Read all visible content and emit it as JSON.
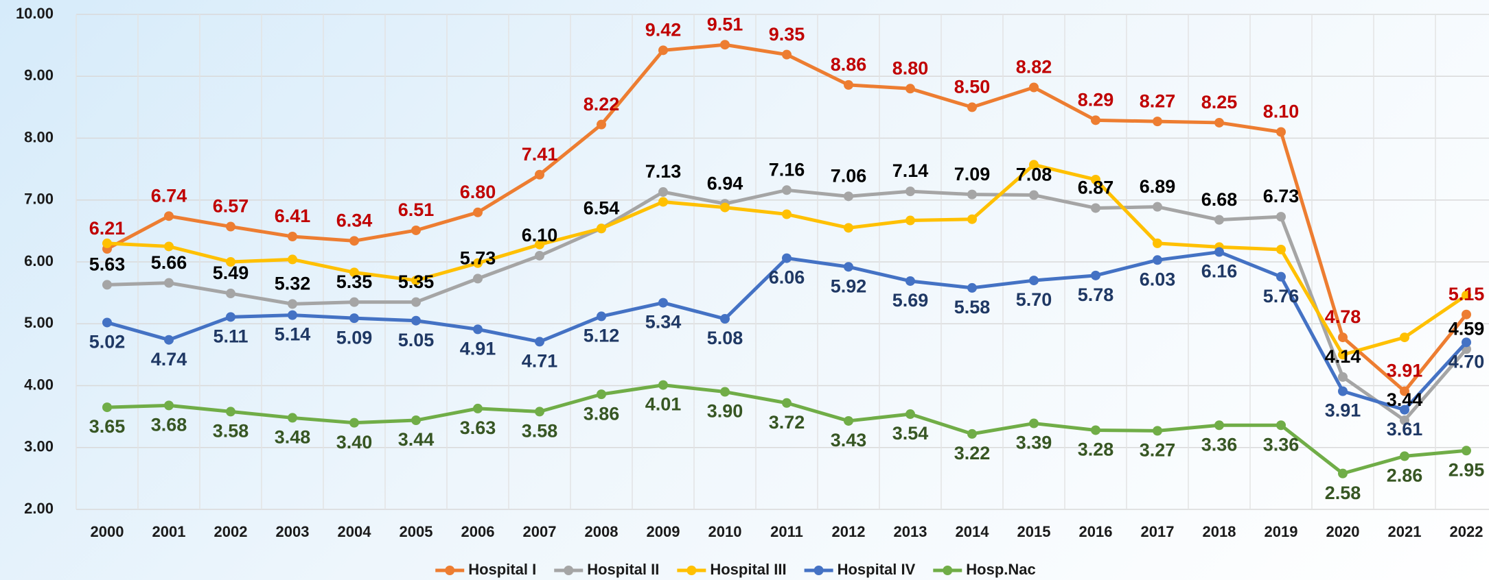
{
  "chart_data": {
    "type": "line",
    "categories": [
      "2000",
      "2001",
      "2002",
      "2003",
      "2004",
      "2005",
      "2006",
      "2007",
      "2008",
      "2009",
      "2010",
      "2011",
      "2012",
      "2013",
      "2014",
      "2015",
      "2016",
      "2017",
      "2018",
      "2019",
      "2020",
      "2021",
      "2022"
    ],
    "series": [
      {
        "name": "Hospital I",
        "color": "#ed7d31",
        "label_color": "#c00000",
        "label_position": "above",
        "values": [
          6.21,
          6.74,
          6.57,
          6.41,
          6.34,
          6.51,
          6.8,
          7.41,
          8.22,
          9.42,
          9.51,
          9.35,
          8.86,
          8.8,
          8.5,
          8.82,
          8.29,
          8.27,
          8.25,
          8.1,
          4.78,
          3.91,
          5.15
        ],
        "value_labels": [
          "6.21",
          "6.74",
          "6.57",
          "6.41",
          "6.34",
          "6.51",
          "6.80",
          "7.41",
          "8.22",
          "9.42",
          "9.51",
          "9.35",
          "8.86",
          "8.80",
          "8.50",
          "8.82",
          "8.29",
          "8.27",
          "8.25",
          "8.10",
          "4.78",
          "3.91",
          "5.15"
        ]
      },
      {
        "name": "Hospital II",
        "color": "#a5a5a5",
        "label_color": "#000000",
        "label_position": "above",
        "values": [
          5.63,
          5.66,
          5.49,
          5.32,
          5.35,
          5.35,
          5.73,
          6.1,
          6.54,
          7.13,
          6.94,
          7.16,
          7.06,
          7.14,
          7.09,
          7.08,
          6.87,
          6.89,
          6.68,
          6.73,
          4.14,
          3.44,
          4.59
        ],
        "value_labels": [
          "5.63",
          "5.66",
          "5.49",
          "5.32",
          "5.35",
          "5.35",
          "5.73",
          "6.10",
          "6.54",
          "7.13",
          "6.94",
          "7.16",
          "7.06",
          "7.14",
          "7.09",
          "7.08",
          "6.87",
          "6.89",
          "6.68",
          "6.73",
          "4.14",
          "3.44",
          "4.59"
        ]
      },
      {
        "name": "Hospital III",
        "color": "#ffc000",
        "values": [
          6.3,
          6.25,
          6.0,
          6.04,
          5.83,
          5.7,
          5.98,
          6.28,
          6.54,
          6.97,
          6.88,
          6.77,
          6.55,
          6.67,
          6.69,
          7.57,
          7.33,
          6.3,
          6.24,
          6.2,
          4.5,
          4.78,
          5.46
        ]
      },
      {
        "name": "Hospital IV",
        "color": "#4472c4",
        "label_color": "#1f3864",
        "label_position": "below",
        "values": [
          5.02,
          4.74,
          5.11,
          5.14,
          5.09,
          5.05,
          4.91,
          4.71,
          5.12,
          5.34,
          5.08,
          6.06,
          5.92,
          5.69,
          5.58,
          5.7,
          5.78,
          6.03,
          6.16,
          5.76,
          3.91,
          3.61,
          4.7
        ],
        "value_labels": [
          "5.02",
          "4.74",
          "5.11",
          "5.14",
          "5.09",
          "5.05",
          "4.91",
          "4.71",
          "5.12",
          "5.34",
          "5.08",
          "6.06",
          "5.92",
          "5.69",
          "5.58",
          "5.70",
          "5.78",
          "6.03",
          "6.16",
          "5.76",
          "3.91",
          "3.61",
          "4.70"
        ]
      },
      {
        "name": "Hosp.Nac",
        "color": "#70ad47",
        "label_color": "#375623",
        "label_position": "below",
        "values": [
          3.65,
          3.68,
          3.58,
          3.48,
          3.4,
          3.44,
          3.63,
          3.58,
          3.86,
          4.01,
          3.9,
          3.72,
          3.43,
          3.54,
          3.22,
          3.39,
          3.28,
          3.27,
          3.36,
          3.36,
          2.58,
          2.86,
          2.95
        ],
        "value_labels": [
          "3.65",
          "3.68",
          "3.58",
          "3.48",
          "3.40",
          "3.44",
          "3.63",
          "3.58",
          "3.86",
          "4.01",
          "3.90",
          "3.72",
          "3.43",
          "3.54",
          "3.22",
          "3.39",
          "3.28",
          "3.27",
          "3.36",
          "3.36",
          "2.58",
          "2.86",
          "2.95"
        ]
      }
    ],
    "ylim": [
      2,
      10
    ],
    "yticks": [
      {
        "value": 2,
        "label": "2.00"
      },
      {
        "value": 3,
        "label": "3.00"
      },
      {
        "value": 4,
        "label": "4.00"
      },
      {
        "value": 5,
        "label": "5.00"
      },
      {
        "value": 6,
        "label": "6.00"
      },
      {
        "value": 7,
        "label": "7.00"
      },
      {
        "value": 8,
        "label": "8.00"
      },
      {
        "value": 9,
        "label": "9.00"
      },
      {
        "value": 10,
        "label": "10.00"
      }
    ],
    "grid": true,
    "legend": "bottom"
  }
}
